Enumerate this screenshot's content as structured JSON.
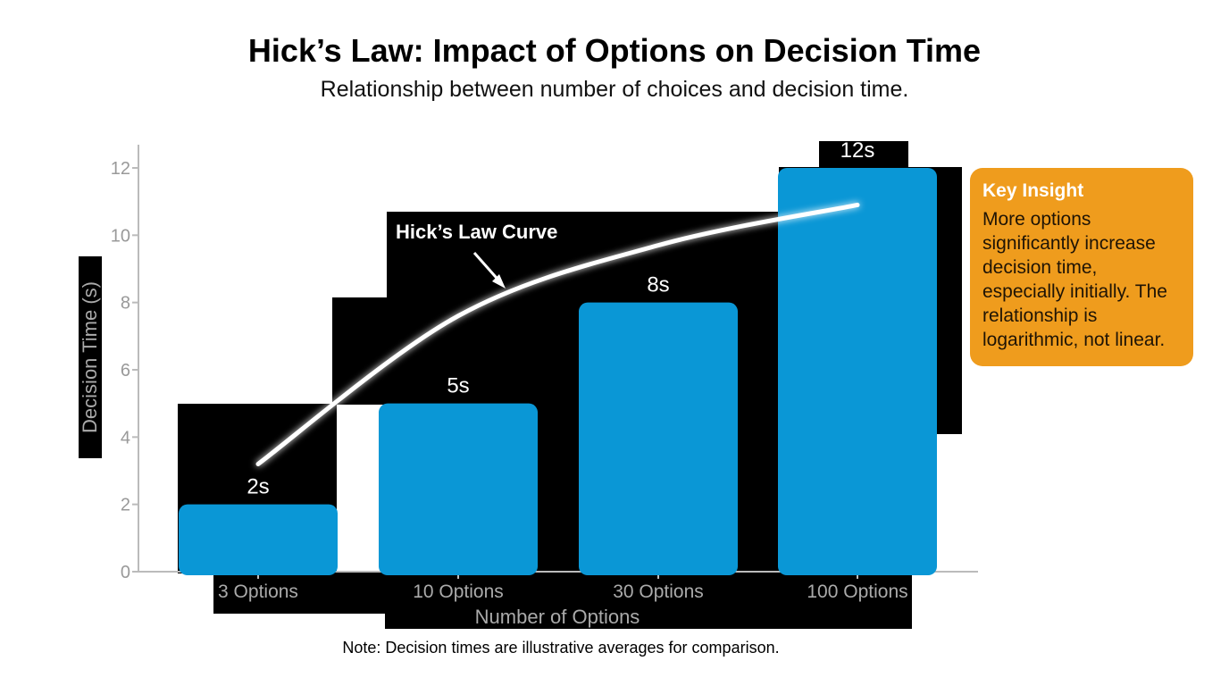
{
  "title": "Hick’s Law: Impact of Options on Decision Time",
  "subtitle": "Relationship between number of choices and decision time.",
  "note": "Note: Decision times are illustrative averages for comparison.",
  "insight": {
    "heading": "Key Insight",
    "body": "More options significantly increase decision time, especially initially. The relationship is logarithmic, not linear."
  },
  "colors": {
    "bar": "#0a97d6",
    "insight_bg": "#ef9c1d",
    "curve": "#ffffff",
    "backdrop": "#000000",
    "axis": "#bbbbbb"
  },
  "chart_data": {
    "type": "bar",
    "categories": [
      "3 Options",
      "10 Options",
      "30 Options",
      "100 Options"
    ],
    "values": [
      2,
      5,
      8,
      12
    ],
    "value_labels": [
      "2s",
      "5s",
      "8s",
      "12s"
    ],
    "xlabel": "Number of Options",
    "ylabel": "Decision Time (s)",
    "ylim": [
      0,
      12
    ],
    "yticks": [
      0,
      2,
      4,
      6,
      8,
      10,
      12
    ],
    "grid": false,
    "curve": {
      "label": "Hick’s Law Curve",
      "x": [
        "3 Options",
        "10 Options",
        "30 Options",
        "100 Options"
      ],
      "y": [
        3.2,
        7.6,
        9.7,
        10.9
      ]
    }
  }
}
